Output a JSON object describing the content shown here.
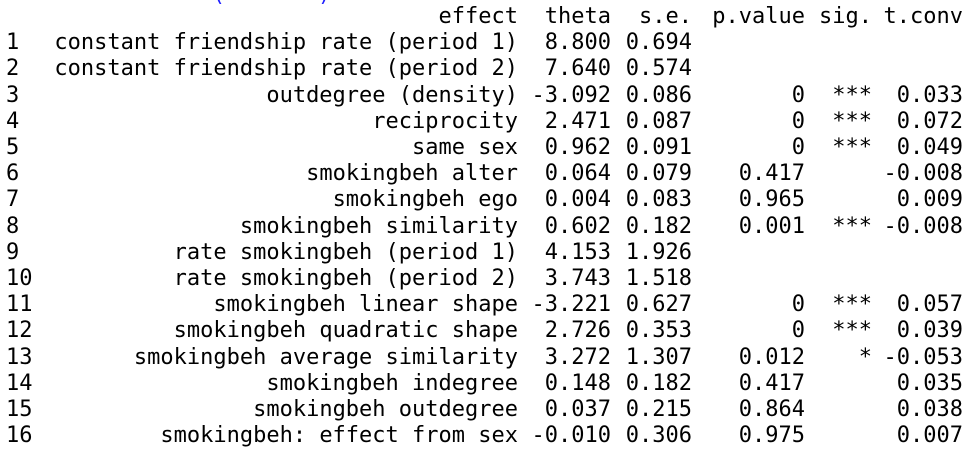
{
  "console": {
    "header_fragment": "                (       )"
  },
  "table": {
    "columns": [
      "effect",
      "theta",
      "s.e.",
      "p.value",
      "sig.",
      "t.conv"
    ],
    "rows": [
      {
        "index": "1",
        "effect": "constant friendship rate (period 1)",
        "theta": "8.800",
        "se": "0.694",
        "p_value": "",
        "sig": "",
        "t_conv": ""
      },
      {
        "index": "2",
        "effect": "constant friendship rate (period 2)",
        "theta": "7.640",
        "se": "0.574",
        "p_value": "",
        "sig": "",
        "t_conv": ""
      },
      {
        "index": "3",
        "effect": "outdegree (density)",
        "theta": "-3.092",
        "se": "0.086",
        "p_value": "0",
        "sig": "***",
        "t_conv": "0.033"
      },
      {
        "index": "4",
        "effect": "reciprocity",
        "theta": "2.471",
        "se": "0.087",
        "p_value": "0",
        "sig": "***",
        "t_conv": "0.072"
      },
      {
        "index": "5",
        "effect": "same sex",
        "theta": "0.962",
        "se": "0.091",
        "p_value": "0",
        "sig": "***",
        "t_conv": "0.049"
      },
      {
        "index": "6",
        "effect": "smokingbeh alter",
        "theta": "0.064",
        "se": "0.079",
        "p_value": "0.417",
        "sig": "",
        "t_conv": "-0.008"
      },
      {
        "index": "7",
        "effect": "smokingbeh ego",
        "theta": "0.004",
        "se": "0.083",
        "p_value": "0.965",
        "sig": "",
        "t_conv": "0.009"
      },
      {
        "index": "8",
        "effect": "smokingbeh similarity",
        "theta": "0.602",
        "se": "0.182",
        "p_value": "0.001",
        "sig": "***",
        "t_conv": "-0.008"
      },
      {
        "index": "9",
        "effect": "rate smokingbeh (period 1)",
        "theta": "4.153",
        "se": "1.926",
        "p_value": "",
        "sig": "",
        "t_conv": ""
      },
      {
        "index": "10",
        "effect": "rate smokingbeh (period 2)",
        "theta": "3.743",
        "se": "1.518",
        "p_value": "",
        "sig": "",
        "t_conv": ""
      },
      {
        "index": "11",
        "effect": "smokingbeh linear shape",
        "theta": "-3.221",
        "se": "0.627",
        "p_value": "0",
        "sig": "***",
        "t_conv": "0.057"
      },
      {
        "index": "12",
        "effect": "smokingbeh quadratic shape",
        "theta": "2.726",
        "se": "0.353",
        "p_value": "0",
        "sig": "***",
        "t_conv": "0.039"
      },
      {
        "index": "13",
        "effect": "smokingbeh average similarity",
        "theta": "3.272",
        "se": "1.307",
        "p_value": "0.012",
        "sig": "*",
        "t_conv": "-0.053"
      },
      {
        "index": "14",
        "effect": "smokingbeh indegree",
        "theta": "0.148",
        "se": "0.182",
        "p_value": "0.417",
        "sig": "",
        "t_conv": "0.035"
      },
      {
        "index": "15",
        "effect": "smokingbeh outdegree",
        "theta": "0.037",
        "se": "0.215",
        "p_value": "0.864",
        "sig": "",
        "t_conv": "0.038"
      },
      {
        "index": "16",
        "effect": "smokingbeh: effect from sex",
        "theta": "-0.010",
        "se": "0.306",
        "p_value": "0.975",
        "sig": "",
        "t_conv": "0.007"
      }
    ]
  }
}
